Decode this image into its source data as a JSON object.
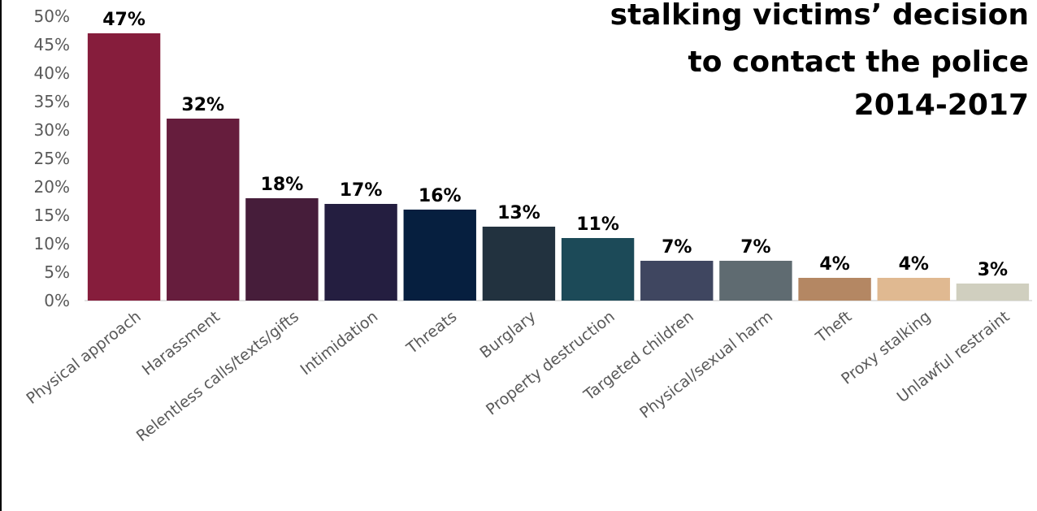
{
  "chart_data": {
    "type": "bar",
    "title_lines": [
      "stalking victims’ decision",
      "to contact the police",
      "2014-2017"
    ],
    "xlabel": "",
    "ylabel": "",
    "ylim": [
      0,
      50
    ],
    "yticks": [
      "0%",
      "5%",
      "10%",
      "15%",
      "20%",
      "25%",
      "30%",
      "35%",
      "40%",
      "45%",
      "50%"
    ],
    "categories": [
      "Physical approach",
      "Harassment",
      "Relentless calls/texts/gifts",
      "Intimidation",
      "Threats",
      "Burglary",
      "Property destruction",
      "Targeted children",
      "Physical/sexual harm",
      "Theft",
      "Proxy stalking",
      "Unlawful restraint"
    ],
    "values": [
      47,
      32,
      18,
      17,
      16,
      13,
      11,
      7,
      7,
      4,
      4,
      3
    ],
    "value_labels": [
      "47%",
      "32%",
      "18%",
      "17%",
      "16%",
      "13%",
      "11%",
      "7%",
      "7%",
      "4%",
      "4%",
      "3%"
    ],
    "colors": [
      "#861d3c",
      "#661d3d",
      "#461d3a",
      "#241e40",
      "#061f3f",
      "#22323f",
      "#1c4a58",
      "#3f4660",
      "#5f6b71",
      "#b48763",
      "#e0b991",
      "#d0cfbf"
    ],
    "grid": false,
    "legend": "none"
  }
}
